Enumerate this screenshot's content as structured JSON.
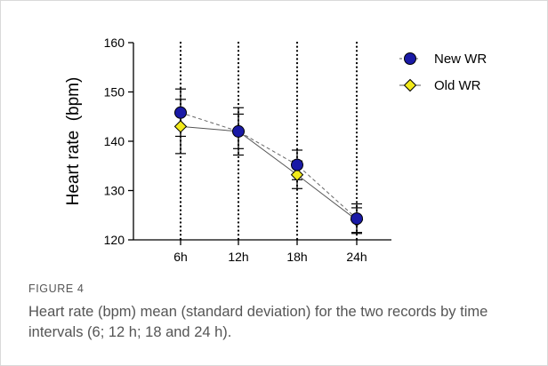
{
  "chart_data": {
    "type": "line",
    "ylabel": "Heart rate  (bpm)",
    "categories": [
      "6h",
      "12h",
      "18h",
      "24h"
    ],
    "ylim": [
      120,
      160
    ],
    "yticks": [
      120,
      130,
      140,
      150,
      160
    ],
    "grid": "dotted vertical lines at each category",
    "legend_position": "top-right",
    "series": [
      {
        "name": "New WR",
        "marker": "circle",
        "line_style": "dashed",
        "color": "#1a1aa6",
        "values": [
          145.8,
          142.0,
          135.2,
          124.3
        ],
        "sd": [
          4.8,
          4.8,
          3.0,
          3.0
        ]
      },
      {
        "name": "Old WR",
        "marker": "diamond",
        "line_style": "solid",
        "color": "#f2ea1a",
        "values": [
          143.0,
          142.0,
          133.2,
          124.0
        ],
        "sd": [
          5.5,
          3.5,
          2.8,
          2.5
        ]
      }
    ]
  },
  "figure": {
    "label": "FIGURE 4",
    "caption": "Heart rate (bpm) mean (standard deviation) for the two records by time intervals (6; 12 h; 18 and 24 h)."
  }
}
